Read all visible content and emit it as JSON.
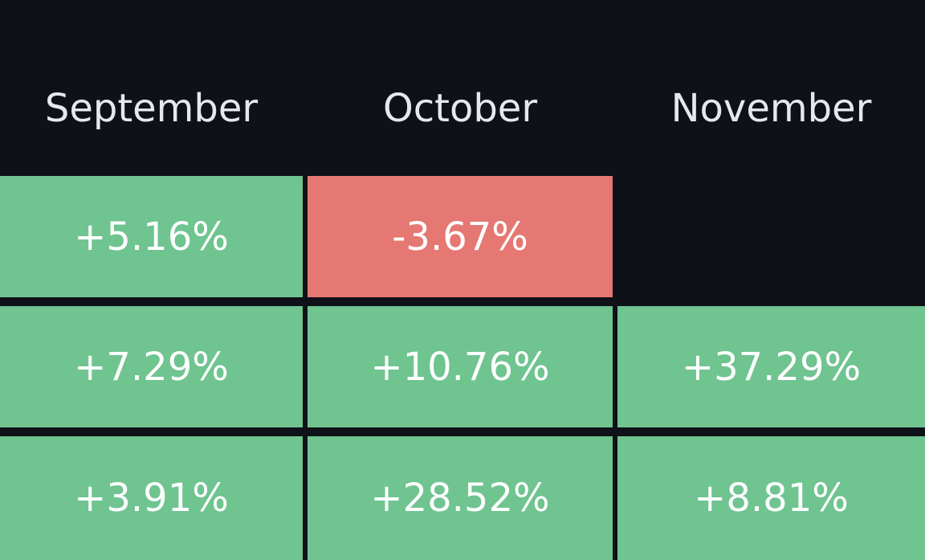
{
  "table": {
    "header": [
      "September",
      "October",
      "November"
    ],
    "rows": [
      [
        "+5.16%",
        "-3.67%",
        null
      ],
      [
        "+7.29%",
        "+10.76%",
        "+37.29%"
      ],
      [
        "+3.91%",
        "+28.52%",
        "+8.81%"
      ]
    ]
  }
}
